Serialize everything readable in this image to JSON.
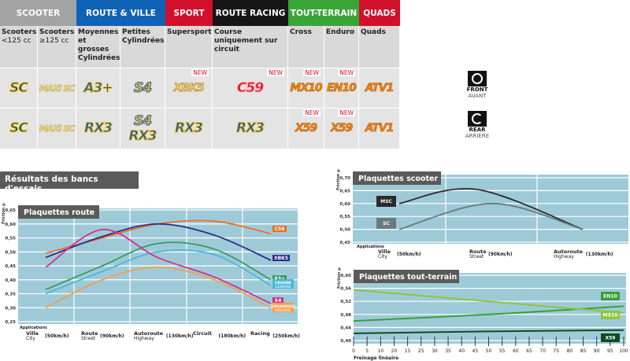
{
  "table": {
    "groups": [
      {
        "label": "SCOOTER",
        "color": "#a3a3a3"
      },
      {
        "label": "ROUTE & VILLE",
        "color": "#1062b4"
      },
      {
        "label": "SPORT",
        "color": "#d2102c"
      },
      {
        "label": "ROUTE RACING",
        "color": "#161616"
      },
      {
        "label": "TOUT-TERRAIN",
        "color": "#3aa537"
      },
      {
        "label": "QUADS",
        "color": "#d2102c"
      }
    ],
    "columns": [
      {
        "desc": "Scooters",
        "desc2": "<125 cc",
        "front": {
          "logo": "SC",
          "style": "sc"
        },
        "rear": [
          {
            "logo": "SC",
            "style": "sc"
          }
        ]
      },
      {
        "desc": "Scooters",
        "desc2": "≥125 cc",
        "front": {
          "logo": "MAXI SC",
          "style": "maxi"
        },
        "rear": [
          {
            "logo": "MAXI SC",
            "style": "maxi"
          }
        ]
      },
      {
        "desc": "Moyennes et grosses Cylindrées",
        "front": {
          "logo": "A3+",
          "style": "blue"
        },
        "rear": [
          {
            "logo": "RX3",
            "style": "blue"
          }
        ]
      },
      {
        "desc": "Petites Cylindrées",
        "front": {
          "logo": "S4",
          "style": "yel"
        },
        "rear": [
          {
            "logo": "S4",
            "style": "yel"
          },
          {
            "logo": "RX3",
            "style": "blue"
          }
        ]
      },
      {
        "desc": "Supersport",
        "front": {
          "logo": "XBK5",
          "style": "xbk",
          "new": "NEW"
        },
        "rear": [
          {
            "logo": "RX3",
            "style": "blue"
          }
        ]
      },
      {
        "desc": "Course uniquement sur circuit",
        "front": {
          "logo": "C59",
          "style": "red",
          "new": "NEW"
        },
        "rear": [
          {
            "logo": "RX3",
            "style": "blue"
          }
        ]
      },
      {
        "desc": "Cross",
        "front": {
          "logo": "MX10",
          "style": "or",
          "new": "NEW"
        },
        "rear": [
          {
            "logo": "X59",
            "style": "or",
            "new": "NEW"
          }
        ]
      },
      {
        "desc": "Enduro",
        "front": {
          "logo": "EN10",
          "style": "or",
          "new": "NEW"
        },
        "rear": [
          {
            "logo": "X59",
            "style": "or",
            "new": "NEW"
          }
        ]
      },
      {
        "desc": "Quads",
        "front": {
          "logo": "ATV1",
          "style": "or"
        },
        "rear": [
          {
            "logo": "ATV1",
            "style": "or"
          }
        ]
      }
    ],
    "front": {
      "label": "FRONT",
      "sub": "AVANT",
      "icon": "front-brake-disc-icon"
    },
    "rear": {
      "label": "REAR",
      "sub": "ARRIÈRE",
      "icon": "rear-brake-disc-icon"
    }
  },
  "section_title": "Résultats des bancs d'essais",
  "chart_data": [
    {
      "type": "line",
      "title": "Plaquettes route",
      "ylabel": "Friction µ",
      "xlabel": "Applications",
      "ylim": [
        0.25,
        0.65
      ],
      "yticks": [
        "0,25",
        "0,30",
        "0,35",
        "0,40",
        "0,45",
        "0,50",
        "0,55",
        "0,60",
        "0,65"
      ],
      "grid": true,
      "categories": [
        {
          "name": "Ville",
          "sub": "City",
          "speed": "(50km/h)"
        },
        {
          "name": "Route",
          "sub": "Street",
          "speed": "(90km/h)"
        },
        {
          "name": "Autoroute",
          "sub": "Highway",
          "speed": "(130km/h)"
        },
        {
          "name": "Circuit",
          "sub": "",
          "speed": "(180km/h)"
        },
        {
          "name": "Racing",
          "sub": "",
          "speed": "(250km/h)"
        }
      ],
      "series": [
        {
          "name": "C59",
          "color": "#e8702a",
          "values": [
            0.495,
            0.55,
            0.6,
            0.61,
            0.565
          ]
        },
        {
          "name": "XBK5",
          "color": "#2a2a8c",
          "values": [
            0.48,
            0.555,
            0.6,
            0.56,
            0.47
          ]
        },
        {
          "name": "A3+",
          "color": "#3a9a5c",
          "values": [
            0.365,
            0.45,
            0.53,
            0.51,
            0.4
          ]
        },
        {
          "name": "ORIGINE",
          "name2": "GENUINE",
          "color": "#4ab8dc",
          "values": [
            0.35,
            0.43,
            0.5,
            0.49,
            0.38
          ]
        },
        {
          "name": "S4",
          "color": "#d4308a",
          "values": [
            0.445,
            0.58,
            0.48,
            0.41,
            0.315
          ]
        },
        {
          "name": "ORGANIQUE",
          "name2": "ORGANIC",
          "color": "#f0a050",
          "values": [
            0.3,
            0.4,
            0.445,
            0.4,
            0.3
          ]
        }
      ]
    },
    {
      "type": "line",
      "title": "Plaquettes scooter",
      "ylabel": "Friction µ",
      "xlabel": "Applications",
      "ylim": [
        0.45,
        0.7
      ],
      "yticks": [
        "0,45",
        "0,50",
        "0,55",
        "0,60",
        "0,65",
        "0,70"
      ],
      "grid": true,
      "categories": [
        {
          "name": "Ville",
          "sub": "City",
          "speed": "(50km/h)"
        },
        {
          "name": "Route",
          "sub": "Street",
          "speed": "(90km/h)"
        },
        {
          "name": "Autoroute",
          "sub": "Highway",
          "speed": "(130km/h)"
        }
      ],
      "series": [
        {
          "name": "MSC",
          "color": "#2a2a2a",
          "values": [
            0.6,
            0.655,
            0.5
          ]
        },
        {
          "name": "SC",
          "color": "#6a7a80",
          "values": [
            0.5,
            0.6,
            0.5
          ]
        }
      ]
    },
    {
      "type": "line",
      "title": "Plaquettes tout-terrain",
      "ylabel": "Friction µ",
      "xlabel": "Freinage linéaire",
      "ylim": [
        0.4,
        0.6
      ],
      "yticks": [
        "0,40",
        "0,44",
        "0,48",
        "0,52",
        "0,56",
        "0,60"
      ],
      "grid": true,
      "xticks": [
        "0",
        "5",
        "10",
        "20",
        "15",
        "25",
        "30",
        "35",
        "40",
        "45",
        "50",
        "55",
        "60",
        "65",
        "70",
        "75",
        "80",
        "85",
        "90",
        "95",
        "100"
      ],
      "xlim": [
        0,
        100
      ],
      "series": [
        {
          "name": "EN10",
          "color": "#3aa03a",
          "x": [
            0,
            50,
            100
          ],
          "values": [
            0.46,
            0.48,
            0.505
          ]
        },
        {
          "name": "MX10",
          "color": "#8cc63e",
          "x": [
            0,
            50,
            100
          ],
          "values": [
            0.555,
            0.52,
            0.485
          ]
        },
        {
          "name": "X59",
          "color": "#0e4a22",
          "x": [
            0,
            50,
            100
          ],
          "values": [
            0.422,
            0.428,
            0.432
          ]
        }
      ]
    }
  ]
}
